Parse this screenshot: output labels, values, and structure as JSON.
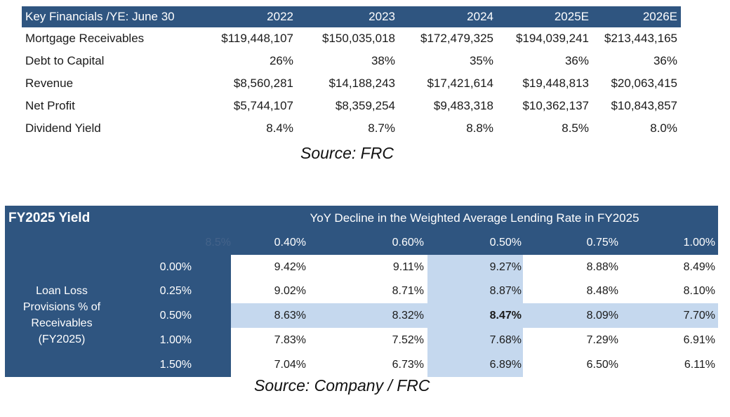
{
  "financials": {
    "header": [
      "Key Financials /YE: June 30",
      "2022",
      "2023",
      "2024",
      "2025E",
      "2026E"
    ],
    "rows": [
      [
        "Mortgage Receivables",
        "$119,448,107",
        "$150,035,018",
        "$172,479,325",
        "$194,039,241",
        "$213,443,165"
      ],
      [
        "Debt to Capital",
        "26%",
        "38%",
        "35%",
        "36%",
        "36%"
      ],
      [
        "Revenue",
        "$8,560,281",
        "$14,188,243",
        "$17,421,614",
        "$19,448,813",
        "$20,063,415"
      ],
      [
        "Net Profit",
        "$5,744,107",
        "$8,359,254",
        "$9,483,318",
        "$10,362,137",
        "$10,843,857"
      ],
      [
        "Dividend Yield",
        "8.4%",
        "8.7%",
        "8.8%",
        "8.5%",
        "8.0%"
      ]
    ],
    "source": "Source: FRC"
  },
  "sensitivity": {
    "title": "FY2025 Yield",
    "column_title": "YoY Decline in the Weighted Average Lending Rate in FY2025",
    "corner_value": "8.5%",
    "columns": [
      "0.40%",
      "0.60%",
      "0.50%",
      "0.75%",
      "1.00%"
    ],
    "row_title": "Loan Loss Provisions % of Receivables (FY2025)",
    "row_title_lines": [
      "Loan Loss",
      "Provisions % of",
      "Receivables",
      "(FY2025)"
    ],
    "rows": [
      {
        "label": "0.00%",
        "values": [
          "9.42%",
          "9.11%",
          "9.27%",
          "8.88%",
          "8.49%"
        ]
      },
      {
        "label": "0.25%",
        "values": [
          "9.02%",
          "8.71%",
          "8.87%",
          "8.48%",
          "8.10%"
        ]
      },
      {
        "label": "0.50%",
        "values": [
          "8.63%",
          "8.32%",
          "8.47%",
          "8.09%",
          "7.70%"
        ]
      },
      {
        "label": "1.00%",
        "values": [
          "7.83%",
          "7.52%",
          "7.68%",
          "7.29%",
          "6.91%"
        ]
      },
      {
        "label": "1.50%",
        "values": [
          "7.04%",
          "6.73%",
          "6.89%",
          "6.50%",
          "6.11%"
        ]
      }
    ],
    "highlight_row": 2,
    "highlight_col": 2,
    "source": "Source: Company / FRC"
  },
  "colors": {
    "header_bg": "#2f5580",
    "highlight_bg": "#c5d8ee"
  }
}
